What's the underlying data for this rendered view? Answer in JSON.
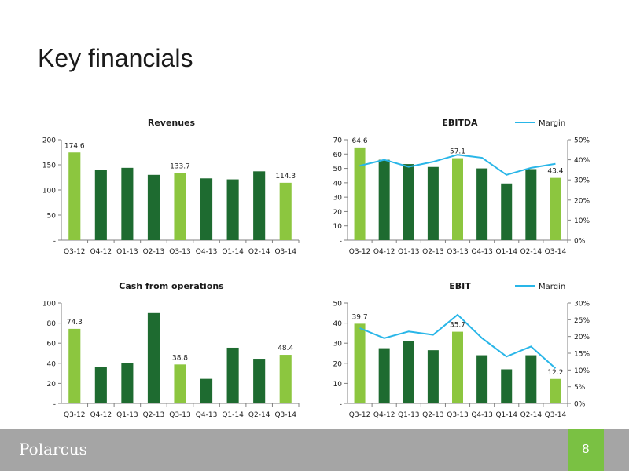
{
  "page": {
    "title": "Key financials",
    "number": "8"
  },
  "footer": {
    "logo_text": "Polarcus"
  },
  "colors": {
    "highlight": "#8cc63f",
    "bar": "#1e6b30",
    "margin_line": "#29b6e8",
    "footer_bg": "#a5a5a5",
    "page_box": "#7ac143"
  },
  "chart_data": [
    {
      "id": "revenues",
      "type": "bar",
      "title": "Revenues",
      "categories": [
        "Q3-12",
        "Q4-12",
        "Q1-13",
        "Q2-13",
        "Q3-13",
        "Q4-13",
        "Q1-14",
        "Q2-14",
        "Q3-14"
      ],
      "values": [
        174.6,
        140,
        144,
        130,
        133.7,
        123,
        121,
        137,
        114.3
      ],
      "highlight": [
        0,
        4,
        8
      ],
      "data_labels": [
        "174.6",
        "",
        "",
        "",
        "133.7",
        "",
        "",
        "",
        "114.3"
      ],
      "ylim": [
        0,
        200
      ],
      "yticks": [
        0,
        50,
        100,
        150,
        200
      ],
      "ytick_labels": [
        "-",
        "50",
        "100",
        "150",
        "200"
      ]
    },
    {
      "id": "ebitda",
      "type": "bar",
      "title": "EBITDA",
      "categories": [
        "Q3-12",
        "Q4-12",
        "Q1-13",
        "Q2-13",
        "Q3-13",
        "Q4-13",
        "Q1-14",
        "Q2-14",
        "Q3-14"
      ],
      "values": [
        64.6,
        56,
        53,
        51,
        57.1,
        50,
        39.5,
        49.5,
        43.4
      ],
      "highlight": [
        0,
        4,
        8
      ],
      "data_labels": [
        "64.6",
        "",
        "",
        "",
        "57.1",
        "",
        "",
        "",
        "43.4"
      ],
      "ylim": [
        0,
        70
      ],
      "yticks": [
        0,
        10,
        20,
        30,
        40,
        50,
        60,
        70
      ],
      "ytick_labels": [
        "-",
        "10",
        "20",
        "30",
        "40",
        "50",
        "60",
        "70"
      ],
      "secondary": {
        "name": "Margin",
        "values": [
          37,
          40,
          36.5,
          39,
          42.5,
          41,
          32.5,
          36,
          38
        ],
        "ylim": [
          0,
          50
        ],
        "yticks": [
          0,
          10,
          20,
          30,
          40,
          50
        ],
        "ytick_labels": [
          "0%",
          "10%",
          "20%",
          "30%",
          "40%",
          "50%"
        ]
      },
      "legend": "top-right"
    },
    {
      "id": "cash",
      "type": "bar",
      "title": "Cash from operations",
      "categories": [
        "Q3-12",
        "Q4-12",
        "Q1-13",
        "Q2-13",
        "Q3-13",
        "Q4-13",
        "Q1-14",
        "Q2-14",
        "Q3-14"
      ],
      "values": [
        74.3,
        36,
        40.5,
        90,
        38.8,
        24.5,
        55.5,
        44.5,
        48.4
      ],
      "highlight": [
        0,
        4,
        8
      ],
      "data_labels": [
        "74.3",
        "",
        "",
        "",
        "38.8",
        "",
        "",
        "",
        "48.4"
      ],
      "ylim": [
        0,
        100
      ],
      "yticks": [
        0,
        20,
        40,
        60,
        80,
        100
      ],
      "ytick_labels": [
        "-",
        "20",
        "40",
        "60",
        "80",
        "100"
      ]
    },
    {
      "id": "ebit",
      "type": "bar",
      "title": "EBIT",
      "categories": [
        "Q3-12",
        "Q4-12",
        "Q1-13",
        "Q2-13",
        "Q3-13",
        "Q4-13",
        "Q1-14",
        "Q2-14",
        "Q3-14"
      ],
      "values": [
        39.7,
        27.5,
        31,
        26.5,
        35.7,
        24,
        17,
        24,
        12.2
      ],
      "highlight": [
        0,
        4,
        8
      ],
      "data_labels": [
        "39.7",
        "",
        "",
        "",
        "35.7",
        "",
        "",
        "",
        "12.2"
      ],
      "ylim": [
        0,
        50
      ],
      "yticks": [
        0,
        10,
        20,
        30,
        40,
        50
      ],
      "ytick_labels": [
        "-",
        "10",
        "20",
        "30",
        "40",
        "50"
      ],
      "secondary": {
        "name": "Margin",
        "values": [
          22.5,
          19.5,
          21.5,
          20.5,
          26.5,
          19.5,
          14,
          17,
          10.5
        ],
        "ylim": [
          0,
          30
        ],
        "yticks": [
          0,
          5,
          10,
          15,
          20,
          25,
          30
        ],
        "ytick_labels": [
          "0%",
          "5%",
          "10%",
          "15%",
          "20%",
          "25%",
          "30%"
        ]
      },
      "legend": "top-right"
    }
  ]
}
